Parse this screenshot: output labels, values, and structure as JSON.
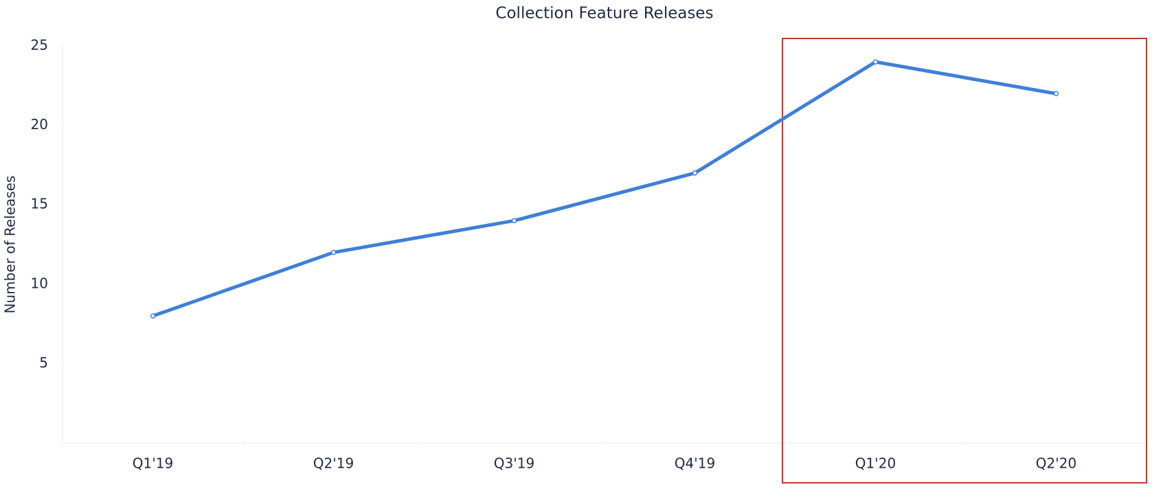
{
  "chart_data": {
    "type": "line",
    "title": "Collection Feature Releases",
    "y_label": "Number of Releases",
    "categories": [
      "Q1'19",
      "Q2'19",
      "Q3'19",
      "Q4'19",
      "Q1'20",
      "Q2'20"
    ],
    "series": [
      {
        "name": "Releases",
        "color": "#3f7fd9",
        "values": [
          8,
          12,
          14,
          17,
          24,
          22
        ]
      }
    ],
    "ylim": [
      0,
      25
    ],
    "yticks": [
      5,
      10,
      15,
      20,
      25
    ],
    "grid": false
  }
}
